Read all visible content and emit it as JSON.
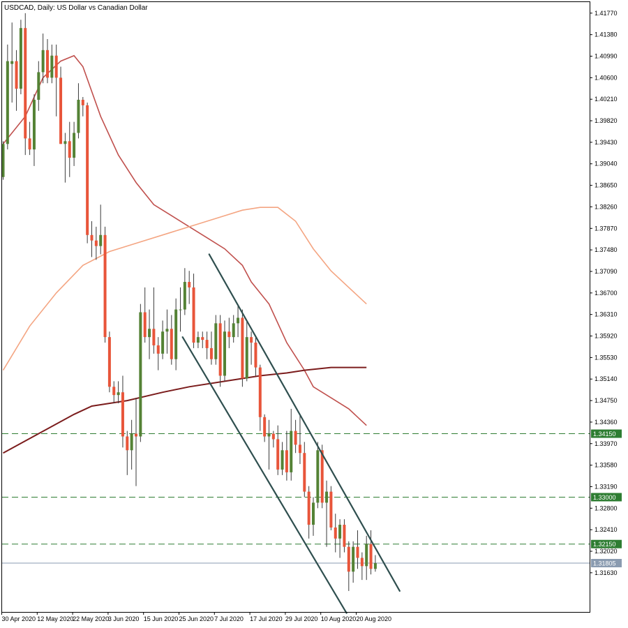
{
  "chart_data": {
    "type": "candlestick",
    "title": "USDCAD, Daily:  US Dollar vs Canadian Dollar",
    "timeframe": "Daily",
    "symbol": "USDCAD",
    "ylim": [
      1.3092,
      1.4197
    ],
    "y_ticks": [
      "1.41770",
      "1.41380",
      "1.40990",
      "1.40600",
      "1.40210",
      "1.39820",
      "1.39430",
      "1.39040",
      "1.38650",
      "1.38260",
      "1.37870",
      "1.37480",
      "1.37090",
      "1.36700",
      "1.36310",
      "1.35920",
      "1.35530",
      "1.35140",
      "1.34750",
      "1.34360",
      "1.33970",
      "1.33580",
      "1.33190",
      "1.32800",
      "1.32410",
      "1.32020",
      "1.31630"
    ],
    "x_ticks": [
      {
        "index": 0,
        "label": "30 Apr 2020"
      },
      {
        "index": 8,
        "label": "12 May 2020"
      },
      {
        "index": 16,
        "label": "22 May 2020"
      },
      {
        "index": 24,
        "label": "3 Jun 2020"
      },
      {
        "index": 32,
        "label": "15 Jun 2020"
      },
      {
        "index": 40,
        "label": "25 Jun 2020"
      },
      {
        "index": 48,
        "label": "7 Jul 2020"
      },
      {
        "index": 56,
        "label": "17 Jul 2020"
      },
      {
        "index": 64,
        "label": "29 Jul 2020"
      },
      {
        "index": 72,
        "label": "10 Aug 2020"
      },
      {
        "index": 80,
        "label": "20 Aug 2020"
      }
    ],
    "colors": {
      "bull": "#548235",
      "bear": "#e8553a",
      "wick": "#3a3a3a",
      "sma_fast": "#c0504d",
      "sma_mid": "#f4a582",
      "sma_slow": "#7b1c1c",
      "channel": "#2f4f4f",
      "hline": "#2e7d32",
      "current": "#8a9bb0"
    },
    "candles": [
      {
        "o": 1.388,
        "h": 1.3945,
        "l": 1.3875,
        "c": 1.394
      },
      {
        "o": 1.394,
        "h": 1.412,
        "l": 1.393,
        "c": 1.409
      },
      {
        "o": 1.4085,
        "h": 1.416,
        "l": 1.4015,
        "c": 1.409
      },
      {
        "o": 1.409,
        "h": 1.411,
        "l": 1.4,
        "c": 1.404
      },
      {
        "o": 1.404,
        "h": 1.4165,
        "l": 1.403,
        "c": 1.415
      },
      {
        "o": 1.415,
        "h": 1.4177,
        "l": 1.392,
        "c": 1.395
      },
      {
        "o": 1.395,
        "h": 1.398,
        "l": 1.392,
        "c": 1.393
      },
      {
        "o": 1.393,
        "h": 1.403,
        "l": 1.39,
        "c": 1.402
      },
      {
        "o": 1.402,
        "h": 1.409,
        "l": 1.4,
        "c": 1.407
      },
      {
        "o": 1.407,
        "h": 1.414,
        "l": 1.405,
        "c": 1.411
      },
      {
        "o": 1.411,
        "h": 1.413,
        "l": 1.405,
        "c": 1.406
      },
      {
        "o": 1.406,
        "h": 1.412,
        "l": 1.405,
        "c": 1.41
      },
      {
        "o": 1.41,
        "h": 1.412,
        "l": 1.399,
        "c": 1.406
      },
      {
        "o": 1.406,
        "h": 1.408,
        "l": 1.394,
        "c": 1.394
      },
      {
        "o": 1.394,
        "h": 1.396,
        "l": 1.387,
        "c": 1.3945
      },
      {
        "o": 1.3945,
        "h": 1.398,
        "l": 1.388,
        "c": 1.3915
      },
      {
        "o": 1.3915,
        "h": 1.398,
        "l": 1.39,
        "c": 1.396
      },
      {
        "o": 1.396,
        "h": 1.405,
        "l": 1.395,
        "c": 1.402
      },
      {
        "o": 1.402,
        "h": 1.4025,
        "l": 1.399,
        "c": 1.401
      },
      {
        "o": 1.401,
        "h": 1.4015,
        "l": 1.376,
        "c": 1.3775
      },
      {
        "o": 1.3775,
        "h": 1.38,
        "l": 1.3735,
        "c": 1.3765
      },
      {
        "o": 1.3765,
        "h": 1.379,
        "l": 1.373,
        "c": 1.3755
      },
      {
        "o": 1.3755,
        "h": 1.383,
        "l": 1.374,
        "c": 1.3775
      },
      {
        "o": 1.3775,
        "h": 1.379,
        "l": 1.358,
        "c": 1.359
      },
      {
        "o": 1.359,
        "h": 1.36,
        "l": 1.349,
        "c": 1.35
      },
      {
        "o": 1.35,
        "h": 1.351,
        "l": 1.347,
        "c": 1.3485
      },
      {
        "o": 1.3485,
        "h": 1.351,
        "l": 1.347,
        "c": 1.349
      },
      {
        "o": 1.349,
        "h": 1.352,
        "l": 1.339,
        "c": 1.341
      },
      {
        "o": 1.341,
        "h": 1.342,
        "l": 1.334,
        "c": 1.3385
      },
      {
        "o": 1.3385,
        "h": 1.344,
        "l": 1.335,
        "c": 1.3415
      },
      {
        "o": 1.3415,
        "h": 1.348,
        "l": 1.332,
        "c": 1.341
      },
      {
        "o": 1.341,
        "h": 1.365,
        "l": 1.34,
        "c": 1.3635
      },
      {
        "o": 1.3635,
        "h": 1.368,
        "l": 1.358,
        "c": 1.359
      },
      {
        "o": 1.359,
        "h": 1.364,
        "l": 1.355,
        "c": 1.3605
      },
      {
        "o": 1.3605,
        "h": 1.368,
        "l": 1.356,
        "c": 1.3575
      },
      {
        "o": 1.3575,
        "h": 1.359,
        "l": 1.353,
        "c": 1.356
      },
      {
        "o": 1.356,
        "h": 1.362,
        "l": 1.355,
        "c": 1.36
      },
      {
        "o": 1.36,
        "h": 1.364,
        "l": 1.356,
        "c": 1.3605
      },
      {
        "o": 1.3605,
        "h": 1.363,
        "l": 1.354,
        "c": 1.355
      },
      {
        "o": 1.355,
        "h": 1.366,
        "l": 1.353,
        "c": 1.364
      },
      {
        "o": 1.364,
        "h": 1.368,
        "l": 1.36,
        "c": 1.364
      },
      {
        "o": 1.364,
        "h": 1.3715,
        "l": 1.363,
        "c": 1.369
      },
      {
        "o": 1.369,
        "h": 1.371,
        "l": 1.365,
        "c": 1.368
      },
      {
        "o": 1.368,
        "h": 1.3705,
        "l": 1.357,
        "c": 1.358
      },
      {
        "o": 1.358,
        "h": 1.36,
        "l": 1.357,
        "c": 1.359
      },
      {
        "o": 1.359,
        "h": 1.36,
        "l": 1.357,
        "c": 1.3585
      },
      {
        "o": 1.3585,
        "h": 1.36,
        "l": 1.355,
        "c": 1.357
      },
      {
        "o": 1.357,
        "h": 1.36,
        "l": 1.354,
        "c": 1.355
      },
      {
        "o": 1.355,
        "h": 1.363,
        "l": 1.354,
        "c": 1.3615
      },
      {
        "o": 1.3615,
        "h": 1.363,
        "l": 1.35,
        "c": 1.352
      },
      {
        "o": 1.352,
        "h": 1.362,
        "l": 1.351,
        "c": 1.36
      },
      {
        "o": 1.36,
        "h": 1.3625,
        "l": 1.357,
        "c": 1.359
      },
      {
        "o": 1.359,
        "h": 1.363,
        "l": 1.358,
        "c": 1.3615
      },
      {
        "o": 1.3615,
        "h": 1.365,
        "l": 1.359,
        "c": 1.3625
      },
      {
        "o": 1.3625,
        "h": 1.364,
        "l": 1.35,
        "c": 1.3515
      },
      {
        "o": 1.3515,
        "h": 1.362,
        "l": 1.351,
        "c": 1.359
      },
      {
        "o": 1.359,
        "h": 1.36,
        "l": 1.354,
        "c": 1.358
      },
      {
        "o": 1.358,
        "h": 1.359,
        "l": 1.352,
        "c": 1.3535
      },
      {
        "o": 1.3535,
        "h": 1.354,
        "l": 1.342,
        "c": 1.3445
      },
      {
        "o": 1.3445,
        "h": 1.345,
        "l": 1.34,
        "c": 1.341
      },
      {
        "o": 1.341,
        "h": 1.344,
        "l": 1.335,
        "c": 1.3415
      },
      {
        "o": 1.3415,
        "h": 1.342,
        "l": 1.339,
        "c": 1.3405
      },
      {
        "o": 1.3405,
        "h": 1.343,
        "l": 1.334,
        "c": 1.335
      },
      {
        "o": 1.335,
        "h": 1.34,
        "l": 1.334,
        "c": 1.3385
      },
      {
        "o": 1.3385,
        "h": 1.342,
        "l": 1.333,
        "c": 1.3345
      },
      {
        "o": 1.3345,
        "h": 1.346,
        "l": 1.333,
        "c": 1.342
      },
      {
        "o": 1.342,
        "h": 1.344,
        "l": 1.338,
        "c": 1.3395
      },
      {
        "o": 1.3395,
        "h": 1.345,
        "l": 1.336,
        "c": 1.338
      },
      {
        "o": 1.338,
        "h": 1.34,
        "l": 1.33,
        "c": 1.331
      },
      {
        "o": 1.331,
        "h": 1.332,
        "l": 1.3225,
        "c": 1.325
      },
      {
        "o": 1.325,
        "h": 1.33,
        "l": 1.323,
        "c": 1.329
      },
      {
        "o": 1.329,
        "h": 1.34,
        "l": 1.328,
        "c": 1.3385
      },
      {
        "o": 1.3385,
        "h": 1.3395,
        "l": 1.328,
        "c": 1.329
      },
      {
        "o": 1.329,
        "h": 1.333,
        "l": 1.321,
        "c": 1.331
      },
      {
        "o": 1.331,
        "h": 1.332,
        "l": 1.324,
        "c": 1.3245
      },
      {
        "o": 1.3245,
        "h": 1.327,
        "l": 1.32,
        "c": 1.3225
      },
      {
        "o": 1.3225,
        "h": 1.326,
        "l": 1.319,
        "c": 1.325
      },
      {
        "o": 1.325,
        "h": 1.326,
        "l": 1.32,
        "c": 1.321
      },
      {
        "o": 1.321,
        "h": 1.322,
        "l": 1.313,
        "c": 1.3165
      },
      {
        "o": 1.3165,
        "h": 1.322,
        "l": 1.3145,
        "c": 1.321
      },
      {
        "o": 1.321,
        "h": 1.324,
        "l": 1.317,
        "c": 1.319
      },
      {
        "o": 1.319,
        "h": 1.32,
        "l": 1.315,
        "c": 1.3175
      },
      {
        "o": 1.3175,
        "h": 1.323,
        "l": 1.315,
        "c": 1.3215
      },
      {
        "o": 1.3215,
        "h": 1.324,
        "l": 1.316,
        "c": 1.317
      },
      {
        "o": 1.317,
        "h": 1.3195,
        "l": 1.3165,
        "c": 1.31805
      }
    ],
    "moving_averages": [
      {
        "role": "sma_fast",
        "color": "#c0504d",
        "points": [
          [
            0,
            1.394
          ],
          [
            5,
            1.399
          ],
          [
            9,
            1.406
          ],
          [
            13,
            1.409
          ],
          [
            16,
            1.41
          ],
          [
            18,
            1.408
          ],
          [
            22,
            1.399
          ],
          [
            26,
            1.392
          ],
          [
            30,
            1.387
          ],
          [
            34,
            1.383
          ],
          [
            38,
            1.381
          ],
          [
            42,
            1.379
          ],
          [
            46,
            1.377
          ],
          [
            50,
            1.375
          ],
          [
            54,
            1.372
          ],
          [
            56,
            1.369
          ],
          [
            60,
            1.365
          ],
          [
            64,
            1.358
          ],
          [
            68,
            1.353
          ],
          [
            70,
            1.35
          ],
          [
            74,
            1.348
          ],
          [
            78,
            1.346
          ],
          [
            82,
            1.343
          ]
        ]
      },
      {
        "role": "sma_mid",
        "color": "#f4a582",
        "points": [
          [
            0,
            1.353
          ],
          [
            6,
            1.361
          ],
          [
            12,
            1.367
          ],
          [
            18,
            1.372
          ],
          [
            24,
            1.3745
          ],
          [
            30,
            1.376
          ],
          [
            38,
            1.378
          ],
          [
            44,
            1.3795
          ],
          [
            50,
            1.381
          ],
          [
            54,
            1.382
          ],
          [
            58,
            1.3825
          ],
          [
            62,
            1.3825
          ],
          [
            66,
            1.38
          ],
          [
            70,
            1.375
          ],
          [
            74,
            1.371
          ],
          [
            78,
            1.368
          ],
          [
            82,
            1.365
          ]
        ]
      },
      {
        "role": "sma_slow",
        "color": "#7b1c1c",
        "points": [
          [
            0,
            1.338
          ],
          [
            8,
            1.3415
          ],
          [
            16,
            1.345
          ],
          [
            20,
            1.3465
          ],
          [
            28,
            1.3475
          ],
          [
            36,
            1.349
          ],
          [
            42,
            1.35
          ],
          [
            50,
            1.351
          ],
          [
            58,
            1.352
          ],
          [
            64,
            1.3525
          ],
          [
            68,
            1.353
          ],
          [
            74,
            1.3535
          ],
          [
            78,
            1.3535
          ],
          [
            82,
            1.3535
          ]
        ]
      }
    ],
    "channel_lines": [
      {
        "points": [
          [
            46.5,
            1.374
          ],
          [
            89.5,
            1.313
          ]
        ]
      },
      {
        "points": [
          [
            40.5,
            1.359
          ],
          [
            77.5,
            1.309
          ]
        ]
      }
    ],
    "horizontal_levels": [
      {
        "value": 1.3415,
        "label": "1.34150",
        "style": "dashed"
      },
      {
        "value": 1.33,
        "label": "1.33000",
        "style": "dashed"
      },
      {
        "value": 1.3215,
        "label": "1.32150",
        "style": "dashed"
      }
    ],
    "current_price": {
      "value": 1.31805,
      "label": "1.31805"
    }
  }
}
